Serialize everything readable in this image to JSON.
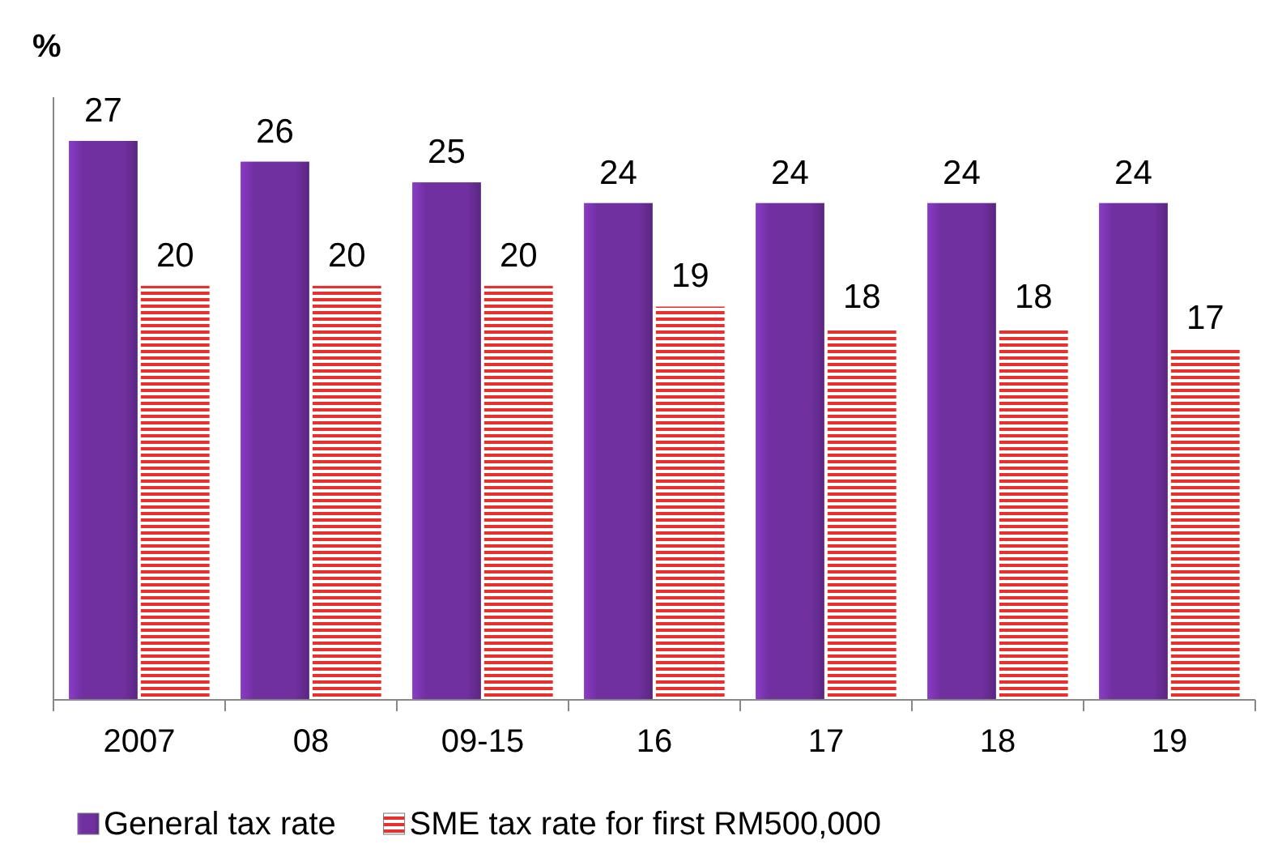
{
  "chart_data": {
    "type": "bar",
    "ylabel": "%",
    "categories": [
      "2007",
      "08",
      "09-15",
      "16",
      "17",
      "18",
      "19"
    ],
    "series": [
      {
        "name": "General tax rate",
        "color": "#7030a0",
        "values": [
          27,
          26,
          25,
          24,
          24,
          24,
          24
        ]
      },
      {
        "name": "SME tax rate for first RM500,000",
        "color": "#e8312c",
        "values": [
          20,
          20,
          20,
          19,
          18,
          18,
          17
        ]
      }
    ],
    "data_labels": true,
    "legend": "bottom"
  }
}
